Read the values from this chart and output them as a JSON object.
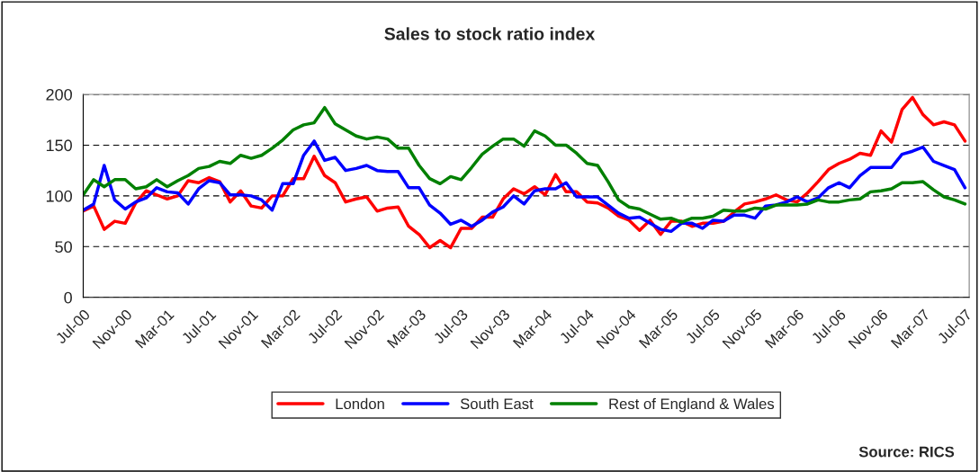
{
  "chart_data": {
    "type": "line",
    "title": "Sales to stock ratio index",
    "categories": [
      "Jul-00",
      null,
      null,
      null,
      "Nov-00",
      null,
      null,
      null,
      "Mar-01",
      null,
      null,
      null,
      "Jul-01",
      null,
      null,
      null,
      "Nov-01",
      null,
      null,
      null,
      "Mar-02",
      null,
      null,
      null,
      "Jul-02",
      null,
      null,
      null,
      "Nov-02",
      null,
      null,
      null,
      "Mar-03",
      null,
      null,
      null,
      "Jul-03",
      null,
      null,
      null,
      "Nov-03",
      null,
      null,
      null,
      "Mar-04",
      null,
      null,
      null,
      "Jul-04",
      null,
      null,
      null,
      "Nov-04",
      null,
      null,
      null,
      "Mar-05",
      null,
      null,
      null,
      "Jul-05",
      null,
      null,
      null,
      "Nov-05",
      null,
      null,
      null,
      "Mar-06",
      null,
      null,
      null,
      "Jul-06",
      null,
      null,
      null,
      "Nov-06",
      null,
      null,
      null,
      "Mar-07",
      null,
      null,
      null,
      "Jul-07"
    ],
    "series": [
      {
        "name": "London",
        "color": "#ff0000",
        "values": [
          85,
          90,
          67,
          75,
          73,
          93,
          105,
          101,
          97,
          100,
          115,
          113,
          118,
          114,
          94,
          105,
          90,
          88,
          100,
          100,
          117,
          117,
          139,
          120,
          113,
          94,
          97,
          99,
          85,
          88,
          89,
          70,
          62,
          49,
          56,
          49,
          68,
          68,
          79,
          79,
          97,
          107,
          102,
          109,
          101,
          121,
          104,
          104,
          94,
          93,
          88,
          80,
          76,
          66,
          76,
          62,
          75,
          75,
          70,
          73,
          73,
          75,
          84,
          92,
          94,
          97,
          101,
          96,
          94,
          103,
          114,
          126,
          132,
          136,
          142,
          140,
          164,
          153,
          185,
          197,
          180,
          170,
          173,
          170,
          154
        ]
      },
      {
        "name": "South East",
        "color": "#0000ff",
        "values": [
          86,
          92,
          130,
          96,
          87,
          94,
          98,
          108,
          104,
          103,
          92,
          107,
          115,
          113,
          101,
          101,
          100,
          96,
          86,
          112,
          112,
          140,
          154,
          135,
          138,
          125,
          127,
          130,
          125,
          124,
          124,
          108,
          108,
          91,
          83,
          72,
          76,
          70,
          76,
          84,
          89,
          100,
          92,
          105,
          107,
          107,
          113,
          99,
          99,
          99,
          91,
          83,
          78,
          79,
          73,
          67,
          65,
          73,
          73,
          68,
          76,
          75,
          81,
          81,
          78,
          90,
          91,
          94,
          99,
          94,
          98,
          108,
          113,
          108,
          120,
          128,
          128,
          128,
          141,
          144,
          148,
          134,
          130,
          126,
          108
        ]
      },
      {
        "name": "Rest of England & Wales",
        "color": "#008000",
        "values": [
          101,
          116,
          109,
          116,
          116,
          107,
          109,
          116,
          109,
          115,
          120,
          127,
          129,
          134,
          132,
          140,
          137,
          140,
          147,
          155,
          165,
          170,
          172,
          187,
          171,
          165,
          159,
          156,
          158,
          156,
          147,
          147,
          130,
          117,
          112,
          119,
          116,
          128,
          141,
          149,
          156,
          156,
          149,
          164,
          159,
          150,
          150,
          142,
          132,
          130,
          114,
          96,
          89,
          87,
          82,
          77,
          78,
          74,
          78,
          78,
          80,
          86,
          85,
          85,
          88,
          87,
          91,
          91,
          91,
          92,
          96,
          94,
          94,
          96,
          97,
          104,
          105,
          107,
          113,
          113,
          114,
          106,
          99,
          96,
          92
        ]
      }
    ],
    "ylim": [
      0,
      200
    ],
    "yticks": [
      0,
      50,
      100,
      150,
      200
    ],
    "grid": "y",
    "legend": "bottom",
    "marker": "none",
    "line_style": "solid",
    "annotations": [
      "Source: RICS"
    ]
  }
}
